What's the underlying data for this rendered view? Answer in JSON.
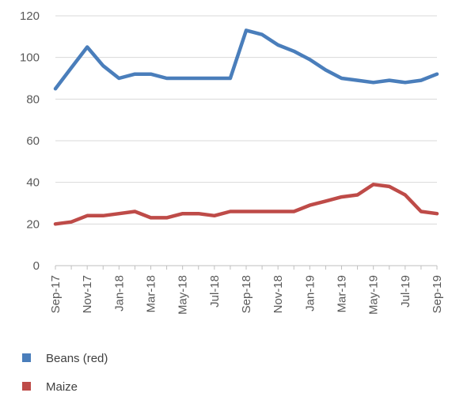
{
  "chart_data": {
    "type": "line",
    "title": "",
    "xlabel": "",
    "ylabel": "",
    "ylim": [
      0,
      120
    ],
    "yticks": [
      "0",
      "20",
      "40",
      "60",
      "80",
      "100",
      "120"
    ],
    "grid": "horizontal",
    "legend_position": "bottom-left",
    "x": [
      "Sep-17",
      "Oct-17",
      "Nov-17",
      "Dec-17",
      "Jan-18",
      "Feb-18",
      "Mar-18",
      "Apr-18",
      "May-18",
      "Jun-18",
      "Jul-18",
      "Aug-18",
      "Sep-18",
      "Oct-18",
      "Nov-18",
      "Dec-18",
      "Jan-19",
      "Feb-19",
      "Mar-19",
      "Apr-19",
      "May-19",
      "Jun-19",
      "Jul-19",
      "Aug-19",
      "Sep-19"
    ],
    "xtick_labels": [
      "Sep-17",
      "Nov-17",
      "Jan-18",
      "Mar-18",
      "May-18",
      "Jul-18",
      "Sep-18",
      "Nov-18",
      "Jan-19",
      "Mar-19",
      "May-19",
      "Jul-19",
      "Sep-19"
    ],
    "series": [
      {
        "name": "Beans (red)",
        "color": "#4a7ebb",
        "values": [
          85,
          95,
          105,
          96,
          90,
          92,
          92,
          90,
          90,
          90,
          90,
          90,
          113,
          111,
          106,
          103,
          99,
          94,
          90,
          89,
          88,
          89,
          88,
          89,
          92
        ]
      },
      {
        "name": "Maize",
        "color": "#be4b48",
        "values": [
          20,
          21,
          24,
          24,
          25,
          26,
          23,
          23,
          25,
          25,
          24,
          26,
          26,
          26,
          26,
          26,
          29,
          31,
          33,
          34,
          39,
          38,
          34,
          26,
          25
        ]
      }
    ]
  }
}
